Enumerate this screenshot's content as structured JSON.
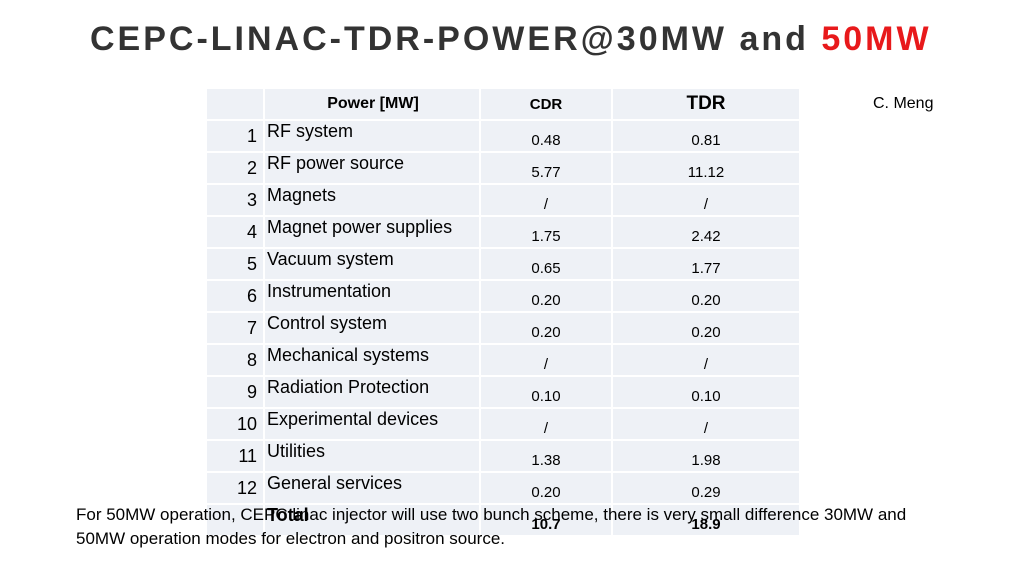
{
  "title": {
    "main": "CEPC-LINAC-TDR-POWER@30MW and ",
    "accent": "50MW",
    "accent_color": "#e8191b"
  },
  "author": "C. Meng",
  "table": {
    "headers": {
      "num": "",
      "item": "Power [MW]",
      "cdr": "CDR",
      "tdr": "TDR"
    },
    "rows": [
      {
        "num": "1",
        "item": "RF system",
        "cdr": "0.48",
        "tdr": "0.81"
      },
      {
        "num": "2",
        "item": "RF power source",
        "cdr": "5.77",
        "tdr": "11.12"
      },
      {
        "num": "3",
        "item": "Magnets",
        "cdr": "/",
        "tdr": "/"
      },
      {
        "num": "4",
        "item": "Magnet power supplies",
        "cdr": "1.75",
        "tdr": "2.42"
      },
      {
        "num": "5",
        "item": "Vacuum system",
        "cdr": "0.65",
        "tdr": "1.77"
      },
      {
        "num": "6",
        "item": "Instrumentation",
        "cdr": "0.20",
        "tdr": "0.20"
      },
      {
        "num": "7",
        "item": "Control system",
        "cdr": "0.20",
        "tdr": "0.20"
      },
      {
        "num": "8",
        "item": "Mechanical systems",
        "cdr": "/",
        "tdr": "/"
      },
      {
        "num": "9",
        "item": "Radiation Protection",
        "cdr": "0.10",
        "tdr": "0.10"
      },
      {
        "num": "10",
        "item": "Experimental devices",
        "cdr": "/",
        "tdr": "/"
      },
      {
        "num": "11",
        "item": "Utilities",
        "cdr": "1.38",
        "tdr": "1.98"
      },
      {
        "num": "12",
        "item": "General services",
        "cdr": "0.20",
        "tdr": "0.29"
      }
    ],
    "total": {
      "num": "",
      "item": "Total",
      "cdr": "10.7",
      "tdr": "18.9"
    }
  },
  "footnote": "For 50MW operation, CEPC linac injector will use two bunch scheme, there is very small difference 30MW and 50MW operation modes for electron and positron source."
}
